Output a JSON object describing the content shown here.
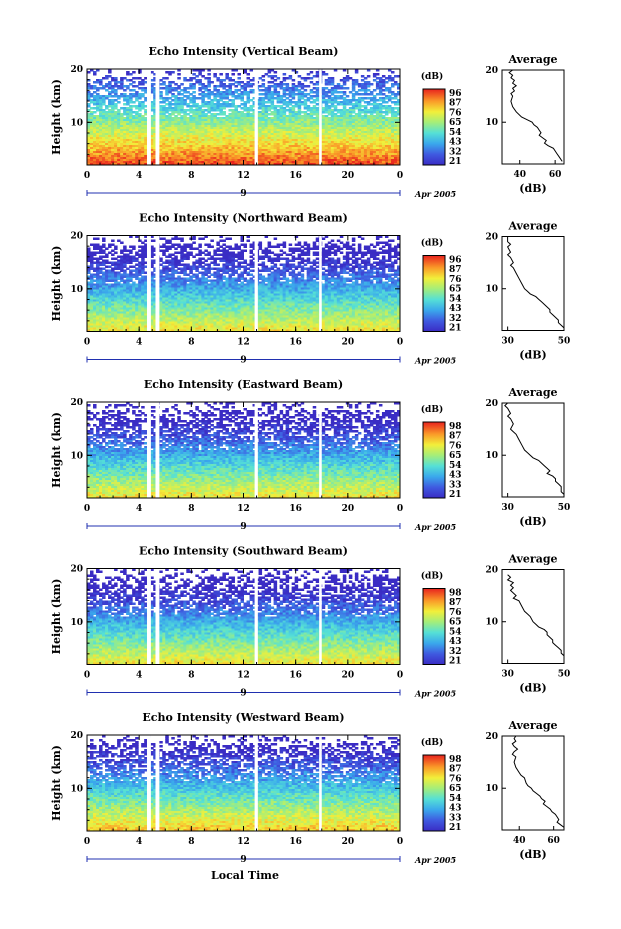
{
  "figure": {
    "xlabel_bottom": "Local Time"
  },
  "chart_data": [
    {
      "type": "heatmap",
      "title": "Echo Intensity (Vertical Beam)",
      "ylabel": "Height (km)",
      "y_ticks": [
        "20",
        "10"
      ],
      "ylim": [
        2,
        20
      ],
      "x_ticks": [
        "0",
        "4",
        "8",
        "12",
        "16",
        "20",
        "0"
      ],
      "xlim": [
        0,
        24
      ],
      "date_center": "9",
      "date_right": "Apr 2005",
      "colorbar": {
        "title": "(dB)",
        "ticks": [
          "96",
          "87",
          "76",
          "65",
          "54",
          "43",
          "32",
          "21"
        ]
      },
      "gaps_hours": [
        [
          4.6,
          4.9
        ],
        [
          5.25,
          5.55
        ],
        [
          12.85,
          13.1
        ],
        [
          17.8,
          18.0
        ]
      ],
      "profile": {
        "title": "Average",
        "xlabel": "(dB)",
        "x_ticks": [
          "40",
          "60"
        ],
        "xlim": [
          30,
          65
        ],
        "y_ticks": [
          "20",
          "10"
        ],
        "points": [
          [
            36,
            20
          ],
          [
            34,
            19.5
          ],
          [
            36,
            19
          ],
          [
            35,
            18.5
          ],
          [
            37,
            18
          ],
          [
            36,
            17.5
          ],
          [
            38,
            17
          ],
          [
            36,
            16.5
          ],
          [
            37,
            16
          ],
          [
            35,
            15.5
          ],
          [
            36,
            15
          ],
          [
            35,
            14
          ],
          [
            36,
            13
          ],
          [
            38,
            12
          ],
          [
            41,
            11
          ],
          [
            44,
            10.5
          ],
          [
            47,
            10
          ],
          [
            48,
            9.5
          ],
          [
            50,
            9
          ],
          [
            51,
            8.5
          ],
          [
            52,
            8
          ],
          [
            51,
            7.5
          ],
          [
            53,
            7
          ],
          [
            55,
            6.5
          ],
          [
            54,
            6
          ],
          [
            56,
            5.5
          ],
          [
            59,
            5
          ],
          [
            60,
            4.5
          ],
          [
            61,
            4
          ],
          [
            62,
            3.5
          ],
          [
            63,
            3
          ],
          [
            64,
            2.5
          ]
        ]
      }
    },
    {
      "type": "heatmap",
      "title": "Echo Intensity (Northward Beam)",
      "ylabel": "Height (km)",
      "y_ticks": [
        "20",
        "10"
      ],
      "ylim": [
        2,
        20
      ],
      "x_ticks": [
        "0",
        "4",
        "8",
        "12",
        "16",
        "20",
        "0"
      ],
      "xlim": [
        0,
        24
      ],
      "date_center": "9",
      "date_right": "Apr 2005",
      "colorbar": {
        "title": "(dB)",
        "ticks": [
          "96",
          "87",
          "76",
          "65",
          "54",
          "43",
          "32",
          "21"
        ]
      },
      "gaps_hours": [
        [
          4.6,
          4.9
        ],
        [
          5.25,
          5.55
        ],
        [
          12.85,
          13.1
        ],
        [
          17.8,
          18.0
        ]
      ],
      "profile": {
        "title": "Average",
        "xlabel": "(dB)",
        "x_ticks": [
          "30",
          "50"
        ],
        "xlim": [
          28,
          50
        ],
        "y_ticks": [
          "20",
          "10"
        ],
        "points": [
          [
            30,
            20
          ],
          [
            30,
            19
          ],
          [
            31,
            18.5
          ],
          [
            30,
            18
          ],
          [
            31,
            17
          ],
          [
            30,
            16.5
          ],
          [
            31,
            16
          ],
          [
            32,
            15
          ],
          [
            31,
            14.5
          ],
          [
            32,
            14
          ],
          [
            33,
            13
          ],
          [
            34,
            12
          ],
          [
            35,
            11
          ],
          [
            36,
            10
          ],
          [
            37,
            9.5
          ],
          [
            38,
            9
          ],
          [
            40,
            8.5
          ],
          [
            41,
            8
          ],
          [
            42,
            7.5
          ],
          [
            43,
            7
          ],
          [
            44,
            6.5
          ],
          [
            45,
            6
          ],
          [
            45,
            5.5
          ],
          [
            46,
            5
          ],
          [
            47,
            4.5
          ],
          [
            48,
            4
          ],
          [
            48,
            3.5
          ],
          [
            49,
            3
          ],
          [
            50,
            2.5
          ]
        ]
      }
    },
    {
      "type": "heatmap",
      "title": "Echo Intensity (Eastward Beam)",
      "ylabel": "Height (km)",
      "y_ticks": [
        "20",
        "10"
      ],
      "ylim": [
        2,
        20
      ],
      "x_ticks": [
        "0",
        "4",
        "8",
        "12",
        "16",
        "20",
        "0"
      ],
      "xlim": [
        0,
        24
      ],
      "date_center": "9",
      "date_right": "Apr 2005",
      "colorbar": {
        "title": "(dB)",
        "ticks": [
          "98",
          "87",
          "76",
          "65",
          "54",
          "43",
          "33",
          "21"
        ]
      },
      "gaps_hours": [
        [
          4.6,
          4.9
        ],
        [
          5.25,
          5.55
        ],
        [
          12.85,
          13.1
        ],
        [
          17.8,
          18.0
        ]
      ],
      "profile": {
        "title": "Average",
        "xlabel": "(dB)",
        "x_ticks": [
          "30",
          "50"
        ],
        "xlim": [
          28,
          50
        ],
        "y_ticks": [
          "20",
          "10"
        ],
        "points": [
          [
            30,
            20
          ],
          [
            29,
            19.5
          ],
          [
            30,
            19
          ],
          [
            31,
            18
          ],
          [
            30,
            17.5
          ],
          [
            31,
            17
          ],
          [
            32,
            16
          ],
          [
            31,
            15
          ],
          [
            32,
            14.5
          ],
          [
            33,
            14
          ],
          [
            34,
            13
          ],
          [
            35,
            12
          ],
          [
            36,
            11
          ],
          [
            37,
            10.5
          ],
          [
            38,
            10
          ],
          [
            39,
            9.5
          ],
          [
            41,
            9
          ],
          [
            42,
            8.5
          ],
          [
            43,
            8
          ],
          [
            44,
            7.5
          ],
          [
            45,
            7
          ],
          [
            44,
            6.5
          ],
          [
            46,
            6
          ],
          [
            47,
            5.5
          ],
          [
            47,
            5
          ],
          [
            48,
            4.5
          ],
          [
            49,
            4
          ],
          [
            49,
            3
          ],
          [
            50,
            2.5
          ]
        ]
      }
    },
    {
      "type": "heatmap",
      "title": "Echo Intensity (Southward Beam)",
      "ylabel": "Height (km)",
      "y_ticks": [
        "20",
        "10"
      ],
      "ylim": [
        2,
        20
      ],
      "x_ticks": [
        "0",
        "4",
        "8",
        "12",
        "16",
        "20",
        "0"
      ],
      "xlim": [
        0,
        24
      ],
      "date_center": "9",
      "date_right": "Apr 2005",
      "colorbar": {
        "title": "(dB)",
        "ticks": [
          "98",
          "87",
          "76",
          "65",
          "54",
          "43",
          "32",
          "21"
        ]
      },
      "gaps_hours": [
        [
          4.6,
          4.9
        ],
        [
          5.25,
          5.55
        ],
        [
          12.85,
          13.1
        ],
        [
          17.8,
          18.0
        ]
      ],
      "profile": {
        "title": "Average",
        "xlabel": "(dB)",
        "x_ticks": [
          "30",
          "50"
        ],
        "xlim": [
          28,
          50
        ],
        "y_ticks": [
          "20",
          "10"
        ],
        "points": [
          [
            30,
            19
          ],
          [
            31,
            18.5
          ],
          [
            30,
            18
          ],
          [
            32,
            17.5
          ],
          [
            31,
            17
          ],
          [
            32,
            16.5
          ],
          [
            31,
            16
          ],
          [
            33,
            15
          ],
          [
            32,
            14.5
          ],
          [
            34,
            14
          ],
          [
            35,
            13
          ],
          [
            36,
            12
          ],
          [
            37,
            11.5
          ],
          [
            38,
            11
          ],
          [
            39,
            10
          ],
          [
            40,
            9.5
          ],
          [
            41,
            9
          ],
          [
            43,
            8.5
          ],
          [
            44,
            8
          ],
          [
            44,
            7.5
          ],
          [
            45,
            7
          ],
          [
            46,
            6.5
          ],
          [
            46,
            6
          ],
          [
            47,
            5.5
          ],
          [
            48,
            5
          ],
          [
            49,
            4.5
          ],
          [
            49,
            4
          ],
          [
            50,
            3.5
          ]
        ]
      }
    },
    {
      "type": "heatmap",
      "title": "Echo Intensity (Westward Beam)",
      "ylabel": "Height (km)",
      "y_ticks": [
        "20",
        "10"
      ],
      "ylim": [
        2,
        20
      ],
      "x_ticks": [
        "0",
        "4",
        "8",
        "12",
        "16",
        "20",
        "0"
      ],
      "xlim": [
        0,
        24
      ],
      "date_center": "9",
      "date_right": "Apr 2005",
      "colorbar": {
        "title": "(dB)",
        "ticks": [
          "98",
          "87",
          "76",
          "65",
          "54",
          "43",
          "33",
          "21"
        ]
      },
      "gaps_hours": [
        [
          4.6,
          4.9
        ],
        [
          5.25,
          5.55
        ],
        [
          12.85,
          13.1
        ],
        [
          17.8,
          18.0
        ]
      ],
      "profile": {
        "title": "Average",
        "xlabel": "(dB)",
        "x_ticks": [
          "40",
          "60"
        ],
        "xlim": [
          30,
          66
        ],
        "y_ticks": [
          "20",
          "10"
        ],
        "points": [
          [
            38,
            20
          ],
          [
            37,
            19.5
          ],
          [
            38,
            19
          ],
          [
            36,
            18.5
          ],
          [
            37,
            18
          ],
          [
            39,
            17.5
          ],
          [
            37,
            17
          ],
          [
            36,
            16.5
          ],
          [
            38,
            16
          ],
          [
            37,
            15
          ],
          [
            38,
            14
          ],
          [
            40,
            13
          ],
          [
            41,
            12.5
          ],
          [
            43,
            12
          ],
          [
            44,
            11
          ],
          [
            45,
            10.5
          ],
          [
            47,
            10
          ],
          [
            48,
            9.5
          ],
          [
            50,
            9
          ],
          [
            52,
            8.5
          ],
          [
            53,
            8
          ],
          [
            55,
            7.5
          ],
          [
            54,
            7
          ],
          [
            56,
            6.5
          ],
          [
            58,
            6
          ],
          [
            59,
            5.5
          ],
          [
            61,
            5
          ],
          [
            62,
            4.5
          ],
          [
            63,
            4
          ],
          [
            62,
            3.5
          ],
          [
            64,
            3
          ],
          [
            66,
            2.5
          ]
        ]
      }
    }
  ]
}
